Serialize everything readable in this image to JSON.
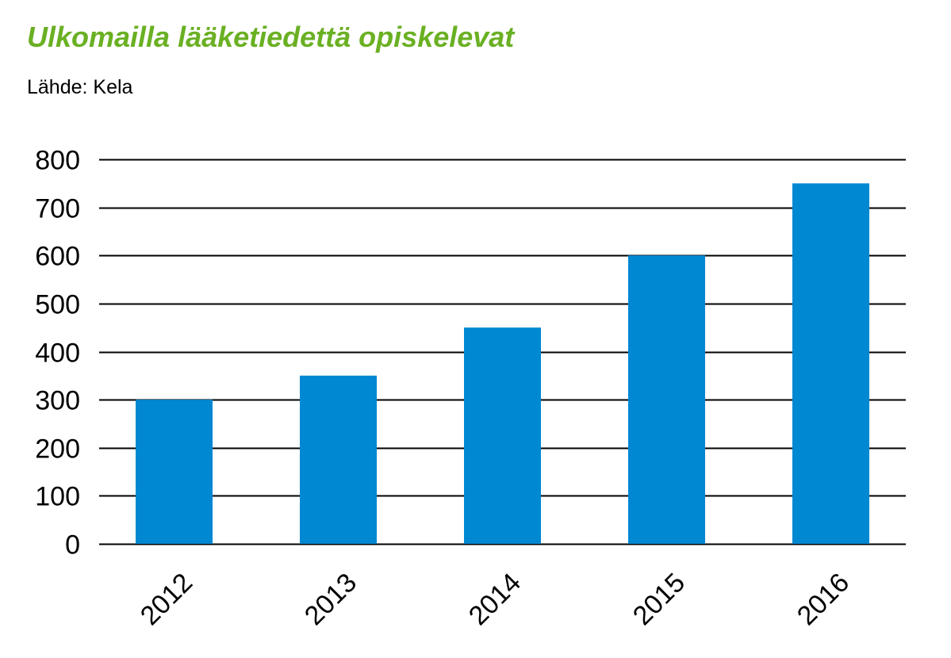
{
  "chart_data": {
    "type": "bar",
    "title": "Ulkomailla lääketiedettä opiskelevat",
    "subtitle": "Lähde: Kela",
    "categories": [
      "2012",
      "2013",
      "2014",
      "2015",
      "2016"
    ],
    "values": [
      300,
      350,
      450,
      600,
      750
    ],
    "ylim": [
      0,
      800
    ],
    "yticks": [
      "0",
      "100",
      "200",
      "300",
      "400",
      "500",
      "600",
      "700",
      "800"
    ],
    "grid": true,
    "x_tick_rotation": "-45 degrees",
    "colors": {
      "title": "#6ab023",
      "bar": "#0088d2",
      "grid": "#000000"
    }
  }
}
